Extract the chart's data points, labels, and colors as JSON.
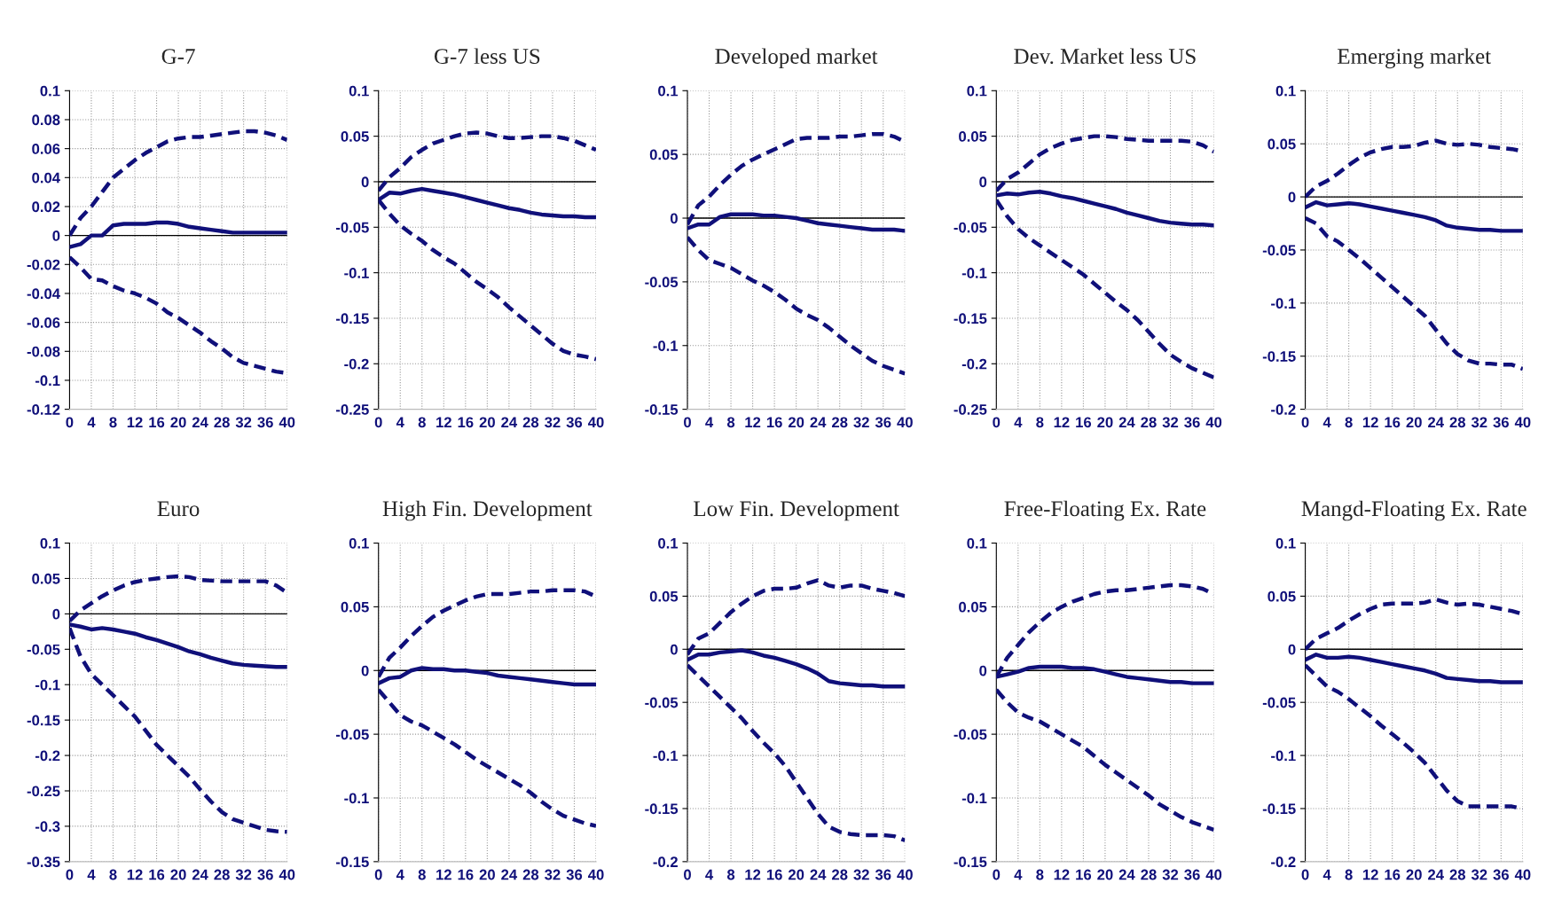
{
  "chart_data": [
    {
      "type": "line",
      "title": "G-7",
      "x": [
        0,
        2,
        4,
        6,
        8,
        10,
        12,
        14,
        16,
        18,
        20,
        22,
        24,
        26,
        28,
        30,
        32,
        34,
        36,
        38,
        40
      ],
      "xlim": [
        0,
        40
      ],
      "xticks": [
        0,
        4,
        8,
        12,
        16,
        20,
        24,
        28,
        32,
        36,
        40
      ],
      "ylim": [
        -0.12,
        0.1
      ],
      "yticks": [
        -0.12,
        -0.1,
        -0.08,
        -0.06,
        -0.04,
        -0.02,
        0,
        0.02,
        0.04,
        0.06,
        0.08,
        0.1
      ],
      "grid": true,
      "ref_lines": [
        {
          "axis": "y",
          "value": 0,
          "color": "#000000"
        }
      ],
      "series": [
        {
          "color": "#10107a",
          "line_style": "dashed",
          "values": [
            0,
            0.012,
            0.02,
            0.03,
            0.04,
            0.046,
            0.052,
            0.057,
            0.061,
            0.065,
            0.067,
            0.068,
            0.068,
            0.069,
            0.07,
            0.071,
            0.072,
            0.072,
            0.071,
            0.069,
            0.066
          ]
        },
        {
          "color": "#10107a",
          "line_style": "solid",
          "values": [
            -0.008,
            -0.006,
            0,
            0,
            0.007,
            0.008,
            0.008,
            0.008,
            0.009,
            0.009,
            0.008,
            0.006,
            0.005,
            0.004,
            0.003,
            0.002,
            0.002,
            0.002,
            0.002,
            0.002,
            0.002
          ]
        },
        {
          "color": "#10107a",
          "line_style": "dashed",
          "values": [
            -0.015,
            -0.022,
            -0.03,
            -0.031,
            -0.035,
            -0.038,
            -0.04,
            -0.043,
            -0.047,
            -0.053,
            -0.057,
            -0.062,
            -0.067,
            -0.073,
            -0.078,
            -0.084,
            -0.088,
            -0.09,
            -0.092,
            -0.094,
            -0.095
          ]
        }
      ]
    },
    {
      "type": "line",
      "title": "G-7 less US",
      "x": [
        0,
        2,
        4,
        6,
        8,
        10,
        12,
        14,
        16,
        18,
        20,
        22,
        24,
        26,
        28,
        30,
        32,
        34,
        36,
        38,
        40
      ],
      "xlim": [
        0,
        40
      ],
      "xticks": [
        0,
        4,
        8,
        12,
        16,
        20,
        24,
        28,
        32,
        36,
        40
      ],
      "ylim": [
        -0.25,
        0.1
      ],
      "yticks": [
        -0.25,
        -0.2,
        -0.15,
        -0.1,
        -0.05,
        0,
        0.05,
        0.1
      ],
      "grid": true,
      "ref_lines": [
        {
          "axis": "y",
          "value": 0,
          "color": "#000000"
        }
      ],
      "series": [
        {
          "color": "#10107a",
          "line_style": "dashed",
          "values": [
            -0.01,
            0.005,
            0.015,
            0.027,
            0.035,
            0.042,
            0.046,
            0.05,
            0.053,
            0.054,
            0.053,
            0.05,
            0.048,
            0.048,
            0.049,
            0.05,
            0.05,
            0.048,
            0.045,
            0.04,
            0.035
          ]
        },
        {
          "color": "#10107a",
          "line_style": "solid",
          "values": [
            -0.02,
            -0.012,
            -0.013,
            -0.01,
            -0.008,
            -0.01,
            -0.012,
            -0.014,
            -0.017,
            -0.02,
            -0.023,
            -0.026,
            -0.029,
            -0.031,
            -0.034,
            -0.036,
            -0.037,
            -0.038,
            -0.038,
            -0.039,
            -0.039
          ]
        },
        {
          "color": "#10107a",
          "line_style": "dashed",
          "values": [
            -0.02,
            -0.035,
            -0.048,
            -0.057,
            -0.065,
            -0.075,
            -0.083,
            -0.09,
            -0.1,
            -0.11,
            -0.118,
            -0.127,
            -0.138,
            -0.148,
            -0.158,
            -0.168,
            -0.178,
            -0.186,
            -0.19,
            -0.192,
            -0.195
          ]
        }
      ]
    },
    {
      "type": "line",
      "title": "Developed market",
      "x": [
        0,
        2,
        4,
        6,
        8,
        10,
        12,
        14,
        16,
        18,
        20,
        22,
        24,
        26,
        28,
        30,
        32,
        34,
        36,
        38,
        40
      ],
      "xlim": [
        0,
        40
      ],
      "xticks": [
        0,
        4,
        8,
        12,
        16,
        20,
        24,
        28,
        32,
        36,
        40
      ],
      "ylim": [
        -0.15,
        0.1
      ],
      "yticks": [
        -0.15,
        -0.1,
        -0.05,
        0,
        0.05,
        0.1
      ],
      "grid": true,
      "ref_lines": [
        {
          "axis": "y",
          "value": 0,
          "color": "#000000"
        }
      ],
      "series": [
        {
          "color": "#10107a",
          "line_style": "dashed",
          "values": [
            -0.005,
            0.01,
            0.017,
            0.026,
            0.034,
            0.041,
            0.046,
            0.05,
            0.054,
            0.058,
            0.062,
            0.063,
            0.063,
            0.063,
            0.064,
            0.064,
            0.065,
            0.066,
            0.066,
            0.064,
            0.06
          ]
        },
        {
          "color": "#10107a",
          "line_style": "solid",
          "values": [
            -0.008,
            -0.005,
            -0.005,
            0.001,
            0.003,
            0.003,
            0.003,
            0.002,
            0.002,
            0.001,
            0,
            -0.002,
            -0.004,
            -0.005,
            -0.006,
            -0.007,
            -0.008,
            -0.009,
            -0.009,
            -0.009,
            -0.01
          ]
        },
        {
          "color": "#10107a",
          "line_style": "dashed",
          "values": [
            -0.015,
            -0.025,
            -0.033,
            -0.036,
            -0.039,
            -0.044,
            -0.049,
            -0.053,
            -0.058,
            -0.064,
            -0.071,
            -0.076,
            -0.08,
            -0.086,
            -0.093,
            -0.1,
            -0.106,
            -0.112,
            -0.116,
            -0.119,
            -0.122
          ]
        }
      ]
    },
    {
      "type": "line",
      "title": "Dev. Market less US",
      "x": [
        0,
        2,
        4,
        6,
        8,
        10,
        12,
        14,
        16,
        18,
        20,
        22,
        24,
        26,
        28,
        30,
        32,
        34,
        36,
        38,
        40
      ],
      "xlim": [
        0,
        40
      ],
      "xticks": [
        0,
        4,
        8,
        12,
        16,
        20,
        24,
        28,
        32,
        36,
        40
      ],
      "ylim": [
        -0.25,
        0.1
      ],
      "yticks": [
        -0.25,
        -0.2,
        -0.15,
        -0.1,
        -0.05,
        0,
        0.05,
        0.1
      ],
      "grid": true,
      "ref_lines": [
        {
          "axis": "y",
          "value": 0,
          "color": "#000000"
        }
      ],
      "series": [
        {
          "color": "#10107a",
          "line_style": "dashed",
          "values": [
            -0.01,
            0.003,
            0.01,
            0.02,
            0.03,
            0.037,
            0.042,
            0.046,
            0.048,
            0.05,
            0.05,
            0.049,
            0.047,
            0.046,
            0.045,
            0.045,
            0.045,
            0.045,
            0.044,
            0.04,
            0.033
          ]
        },
        {
          "color": "#10107a",
          "line_style": "solid",
          "values": [
            -0.015,
            -0.013,
            -0.014,
            -0.012,
            -0.011,
            -0.013,
            -0.016,
            -0.018,
            -0.021,
            -0.024,
            -0.027,
            -0.03,
            -0.034,
            -0.037,
            -0.04,
            -0.043,
            -0.045,
            -0.046,
            -0.047,
            -0.047,
            -0.048
          ]
        },
        {
          "color": "#10107a",
          "line_style": "dashed",
          "values": [
            -0.02,
            -0.038,
            -0.052,
            -0.062,
            -0.07,
            -0.078,
            -0.086,
            -0.094,
            -0.102,
            -0.112,
            -0.122,
            -0.132,
            -0.141,
            -0.152,
            -0.165,
            -0.178,
            -0.19,
            -0.198,
            -0.205,
            -0.21,
            -0.215
          ]
        }
      ]
    },
    {
      "type": "line",
      "title": "Emerging market",
      "x": [
        0,
        2,
        4,
        6,
        8,
        10,
        12,
        14,
        16,
        18,
        20,
        22,
        24,
        26,
        28,
        30,
        32,
        34,
        36,
        38,
        40
      ],
      "xlim": [
        0,
        40
      ],
      "xticks": [
        0,
        4,
        8,
        12,
        16,
        20,
        24,
        28,
        32,
        36,
        40
      ],
      "ylim": [
        -0.2,
        0.1
      ],
      "yticks": [
        -0.2,
        -0.15,
        -0.1,
        -0.05,
        0,
        0.05,
        0.1
      ],
      "grid": true,
      "ref_lines": [
        {
          "axis": "y",
          "value": 0,
          "color": "#000000"
        }
      ],
      "series": [
        {
          "color": "#10107a",
          "line_style": "dashed",
          "values": [
            0,
            0.01,
            0.015,
            0.022,
            0.03,
            0.037,
            0.042,
            0.045,
            0.047,
            0.047,
            0.048,
            0.051,
            0.053,
            0.05,
            0.049,
            0.05,
            0.049,
            0.047,
            0.046,
            0.045,
            0.043
          ]
        },
        {
          "color": "#10107a",
          "line_style": "solid",
          "values": [
            -0.01,
            -0.005,
            -0.008,
            -0.007,
            -0.006,
            -0.007,
            -0.009,
            -0.011,
            -0.013,
            -0.015,
            -0.017,
            -0.019,
            -0.022,
            -0.027,
            -0.029,
            -0.03,
            -0.031,
            -0.031,
            -0.032,
            -0.032,
            -0.032
          ]
        },
        {
          "color": "#10107a",
          "line_style": "dashed",
          "values": [
            -0.02,
            -0.025,
            -0.037,
            -0.042,
            -0.05,
            -0.058,
            -0.067,
            -0.076,
            -0.085,
            -0.094,
            -0.103,
            -0.112,
            -0.125,
            -0.138,
            -0.148,
            -0.154,
            -0.157,
            -0.157,
            -0.158,
            -0.158,
            -0.162
          ]
        }
      ]
    },
    {
      "type": "line",
      "title": "Euro",
      "x": [
        0,
        2,
        4,
        6,
        8,
        10,
        12,
        14,
        16,
        18,
        20,
        22,
        24,
        26,
        28,
        30,
        32,
        34,
        36,
        38,
        40
      ],
      "xlim": [
        0,
        40
      ],
      "xticks": [
        0,
        4,
        8,
        12,
        16,
        20,
        24,
        28,
        32,
        36,
        40
      ],
      "ylim": [
        -0.35,
        0.1
      ],
      "yticks": [
        -0.35,
        -0.3,
        -0.25,
        -0.2,
        -0.15,
        -0.1,
        -0.05,
        0,
        0.05,
        0.1
      ],
      "grid": true,
      "ref_lines": [
        {
          "axis": "y",
          "value": 0,
          "color": "#000000"
        }
      ],
      "series": [
        {
          "color": "#10107a",
          "line_style": "dashed",
          "values": [
            -0.01,
            0.005,
            0.015,
            0.025,
            0.033,
            0.04,
            0.045,
            0.048,
            0.05,
            0.052,
            0.053,
            0.052,
            0.048,
            0.047,
            0.046,
            0.046,
            0.046,
            0.046,
            0.046,
            0.04,
            0.03
          ]
        },
        {
          "color": "#10107a",
          "line_style": "solid",
          "values": [
            -0.015,
            -0.018,
            -0.022,
            -0.02,
            -0.022,
            -0.025,
            -0.028,
            -0.033,
            -0.037,
            -0.042,
            -0.047,
            -0.053,
            -0.057,
            -0.062,
            -0.066,
            -0.07,
            -0.072,
            -0.073,
            -0.074,
            -0.075,
            -0.075
          ]
        },
        {
          "color": "#10107a",
          "line_style": "dashed",
          "values": [
            -0.02,
            -0.06,
            -0.085,
            -0.1,
            -0.115,
            -0.13,
            -0.145,
            -0.165,
            -0.185,
            -0.2,
            -0.215,
            -0.23,
            -0.248,
            -0.265,
            -0.28,
            -0.29,
            -0.295,
            -0.3,
            -0.305,
            -0.307,
            -0.308
          ]
        }
      ]
    },
    {
      "type": "line",
      "title": "High Fin. Development",
      "x": [
        0,
        2,
        4,
        6,
        8,
        10,
        12,
        14,
        16,
        18,
        20,
        22,
        24,
        26,
        28,
        30,
        32,
        34,
        36,
        38,
        40
      ],
      "xlim": [
        0,
        40
      ],
      "xticks": [
        0,
        4,
        8,
        12,
        16,
        20,
        24,
        28,
        32,
        36,
        40
      ],
      "ylim": [
        -0.15,
        0.1
      ],
      "yticks": [
        -0.15,
        -0.1,
        -0.05,
        0,
        0.05,
        0.1
      ],
      "grid": true,
      "ref_lines": [
        {
          "axis": "y",
          "value": 0,
          "color": "#000000"
        }
      ],
      "series": [
        {
          "color": "#10107a",
          "line_style": "dashed",
          "values": [
            -0.005,
            0.01,
            0.018,
            0.027,
            0.035,
            0.042,
            0.047,
            0.051,
            0.055,
            0.058,
            0.06,
            0.06,
            0.06,
            0.061,
            0.062,
            0.062,
            0.063,
            0.063,
            0.063,
            0.062,
            0.058
          ]
        },
        {
          "color": "#10107a",
          "line_style": "solid",
          "values": [
            -0.01,
            -0.006,
            -0.005,
            0,
            0.002,
            0.001,
            0.001,
            0,
            0,
            -0.001,
            -0.002,
            -0.004,
            -0.005,
            -0.006,
            -0.007,
            -0.008,
            -0.009,
            -0.01,
            -0.011,
            -0.011,
            -0.011
          ]
        },
        {
          "color": "#10107a",
          "line_style": "dashed",
          "values": [
            -0.015,
            -0.025,
            -0.035,
            -0.04,
            -0.043,
            -0.048,
            -0.053,
            -0.058,
            -0.064,
            -0.07,
            -0.075,
            -0.08,
            -0.085,
            -0.09,
            -0.096,
            -0.103,
            -0.109,
            -0.114,
            -0.117,
            -0.12,
            -0.122
          ]
        }
      ]
    },
    {
      "type": "line",
      "title": "Low Fin. Development",
      "x": [
        0,
        2,
        4,
        6,
        8,
        10,
        12,
        14,
        16,
        18,
        20,
        22,
        24,
        26,
        28,
        30,
        32,
        34,
        36,
        38,
        40
      ],
      "xlim": [
        0,
        40
      ],
      "xticks": [
        0,
        4,
        8,
        12,
        16,
        20,
        24,
        28,
        32,
        36,
        40
      ],
      "ylim": [
        -0.2,
        0.1
      ],
      "yticks": [
        -0.2,
        -0.15,
        -0.1,
        -0.05,
        0,
        0.05,
        0.1
      ],
      "grid": true,
      "ref_lines": [
        {
          "axis": "y",
          "value": 0,
          "color": "#000000"
        }
      ],
      "series": [
        {
          "color": "#10107a",
          "line_style": "dashed",
          "values": [
            -0.005,
            0.01,
            0.015,
            0.025,
            0.035,
            0.043,
            0.05,
            0.055,
            0.057,
            0.057,
            0.058,
            0.062,
            0.065,
            0.06,
            0.058,
            0.06,
            0.06,
            0.057,
            0.055,
            0.053,
            0.05
          ]
        },
        {
          "color": "#10107a",
          "line_style": "solid",
          "values": [
            -0.01,
            -0.005,
            -0.005,
            -0.003,
            -0.002,
            -0.001,
            -0.003,
            -0.006,
            -0.008,
            -0.011,
            -0.014,
            -0.018,
            -0.023,
            -0.03,
            -0.032,
            -0.033,
            -0.034,
            -0.034,
            -0.035,
            -0.035,
            -0.035
          ]
        },
        {
          "color": "#10107a",
          "line_style": "dashed",
          "values": [
            -0.015,
            -0.025,
            -0.035,
            -0.045,
            -0.055,
            -0.065,
            -0.077,
            -0.088,
            -0.098,
            -0.11,
            -0.125,
            -0.14,
            -0.155,
            -0.167,
            -0.172,
            -0.174,
            -0.175,
            -0.175,
            -0.175,
            -0.176,
            -0.18
          ]
        }
      ]
    },
    {
      "type": "line",
      "title": "Free-Floating Ex. Rate",
      "x": [
        0,
        2,
        4,
        6,
        8,
        10,
        12,
        14,
        16,
        18,
        20,
        22,
        24,
        26,
        28,
        30,
        32,
        34,
        36,
        38,
        40
      ],
      "xlim": [
        0,
        40
      ],
      "xticks": [
        0,
        4,
        8,
        12,
        16,
        20,
        24,
        28,
        32,
        36,
        40
      ],
      "ylim": [
        -0.15,
        0.1
      ],
      "yticks": [
        -0.15,
        -0.1,
        -0.05,
        0,
        0.05,
        0.1
      ],
      "grid": true,
      "ref_lines": [
        {
          "axis": "y",
          "value": 0,
          "color": "#000000"
        }
      ],
      "series": [
        {
          "color": "#10107a",
          "line_style": "dashed",
          "values": [
            -0.005,
            0.01,
            0.02,
            0.03,
            0.038,
            0.045,
            0.05,
            0.054,
            0.057,
            0.06,
            0.062,
            0.063,
            0.063,
            0.064,
            0.065,
            0.066,
            0.067,
            0.067,
            0.066,
            0.064,
            0.06
          ]
        },
        {
          "color": "#10107a",
          "line_style": "solid",
          "values": [
            -0.005,
            -0.003,
            -0.001,
            0.002,
            0.003,
            0.003,
            0.003,
            0.002,
            0.002,
            0.001,
            -0.001,
            -0.003,
            -0.005,
            -0.006,
            -0.007,
            -0.008,
            -0.009,
            -0.009,
            -0.01,
            -0.01,
            -0.01
          ]
        },
        {
          "color": "#10107a",
          "line_style": "dashed",
          "values": [
            -0.015,
            -0.025,
            -0.033,
            -0.037,
            -0.04,
            -0.045,
            -0.05,
            -0.055,
            -0.06,
            -0.067,
            -0.074,
            -0.08,
            -0.086,
            -0.092,
            -0.098,
            -0.105,
            -0.11,
            -0.115,
            -0.119,
            -0.122,
            -0.125
          ]
        }
      ]
    },
    {
      "type": "line",
      "title": "Mangd-Floating Ex. Rate",
      "x": [
        0,
        2,
        4,
        6,
        8,
        10,
        12,
        14,
        16,
        18,
        20,
        22,
        24,
        26,
        28,
        30,
        32,
        34,
        36,
        38,
        40
      ],
      "xlim": [
        0,
        40
      ],
      "xticks": [
        0,
        4,
        8,
        12,
        16,
        20,
        24,
        28,
        32,
        36,
        40
      ],
      "ylim": [
        -0.2,
        0.1
      ],
      "yticks": [
        -0.2,
        -0.15,
        -0.1,
        -0.05,
        0,
        0.05,
        0.1
      ],
      "grid": true,
      "ref_lines": [
        {
          "axis": "y",
          "value": 0,
          "color": "#000000"
        }
      ],
      "series": [
        {
          "color": "#10107a",
          "line_style": "dashed",
          "values": [
            0,
            0.01,
            0.015,
            0.02,
            0.027,
            0.033,
            0.038,
            0.042,
            0.043,
            0.043,
            0.043,
            0.044,
            0.047,
            0.044,
            0.042,
            0.043,
            0.042,
            0.04,
            0.038,
            0.036,
            0.033
          ]
        },
        {
          "color": "#10107a",
          "line_style": "solid",
          "values": [
            -0.01,
            -0.005,
            -0.008,
            -0.008,
            -0.007,
            -0.008,
            -0.01,
            -0.012,
            -0.014,
            -0.016,
            -0.018,
            -0.02,
            -0.023,
            -0.027,
            -0.028,
            -0.029,
            -0.03,
            -0.03,
            -0.031,
            -0.031,
            -0.031
          ]
        },
        {
          "color": "#10107a",
          "line_style": "dashed",
          "values": [
            -0.015,
            -0.025,
            -0.035,
            -0.04,
            -0.047,
            -0.055,
            -0.063,
            -0.072,
            -0.08,
            -0.088,
            -0.097,
            -0.107,
            -0.12,
            -0.133,
            -0.143,
            -0.148,
            -0.148,
            -0.148,
            -0.148,
            -0.148,
            -0.15
          ]
        }
      ]
    }
  ]
}
